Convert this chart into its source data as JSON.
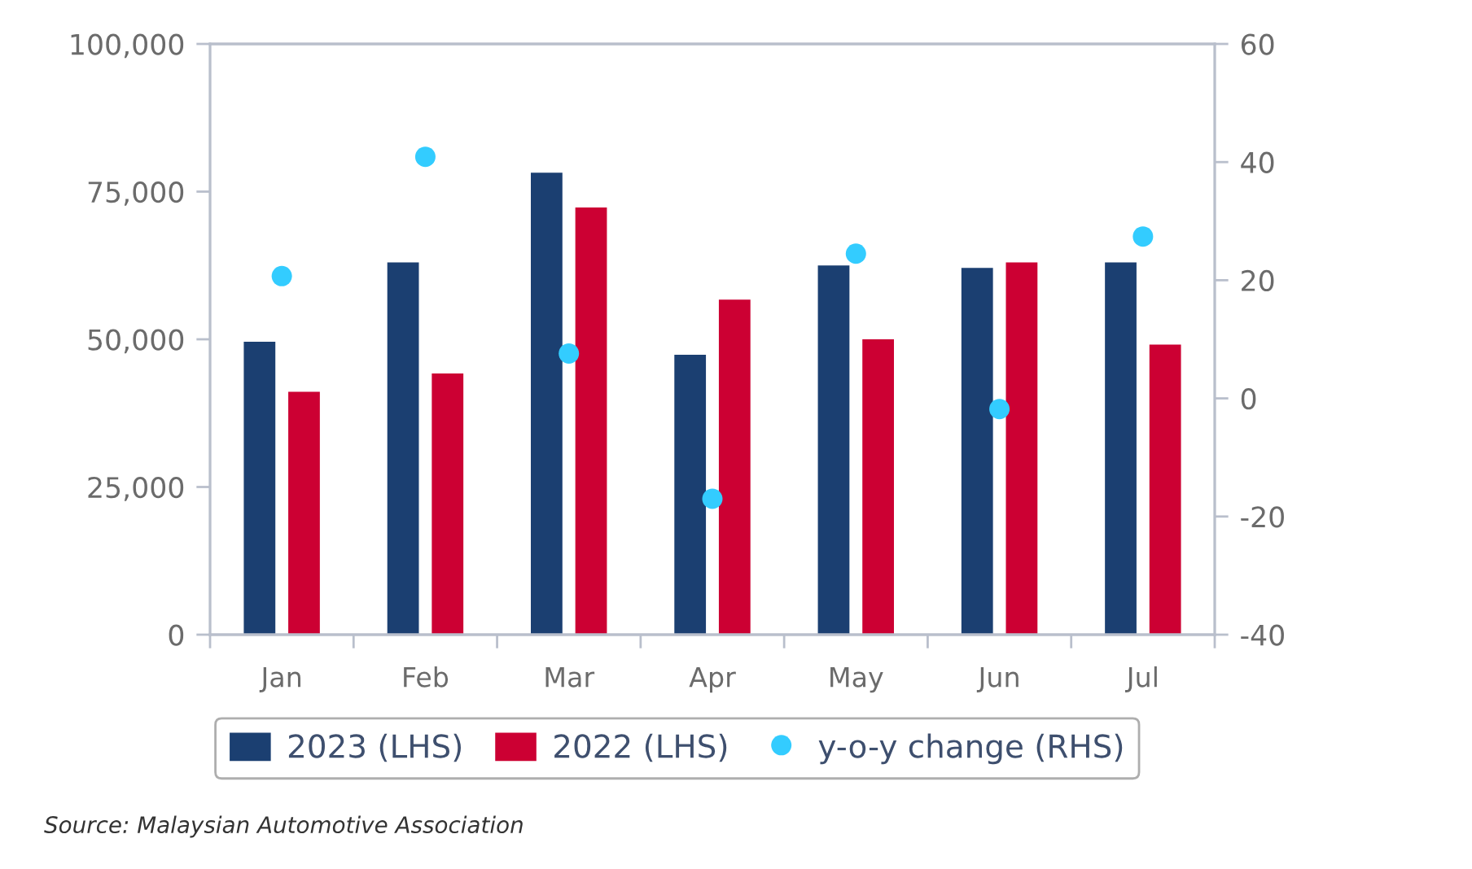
{
  "chart_data": {
    "type": "bar",
    "categories": [
      "Jan",
      "Feb",
      "Mar",
      "Apr",
      "May",
      "Jun",
      "Jul"
    ],
    "series": [
      {
        "name": "2023 (LHS)",
        "color": "#1b3f71",
        "values": [
          49600,
          63000,
          78200,
          47400,
          62500,
          62100,
          63000
        ]
      },
      {
        "name": "2022 (LHS)",
        "color": "#cc0033",
        "values": [
          41100,
          44200,
          72300,
          56700,
          50000,
          63000,
          49100
        ]
      },
      {
        "name": "y-o-y change (RHS)",
        "type": "scatter",
        "axis": "y2",
        "color": "#33ccff",
        "values": [
          20.7,
          40.9,
          7.6,
          -17.0,
          24.5,
          -1.8,
          27.4
        ]
      }
    ],
    "ylim": [
      0,
      100000
    ],
    "yticks": [
      0,
      {
        "value": 25000,
        "label": "25,000"
      },
      {
        "value": 50000,
        "label": "50,000"
      },
      {
        "value": 75000,
        "label": "75,000"
      },
      {
        "value": 100000,
        "label": "100,000"
      }
    ],
    "y2lim": [
      -40,
      60
    ],
    "y2ticks": [
      -40,
      -20,
      0,
      20,
      40,
      60
    ],
    "legend": "bottom",
    "grid": false,
    "marker": "circle",
    "annotations": [
      "Source: Malaysian Automotive Association"
    ]
  }
}
